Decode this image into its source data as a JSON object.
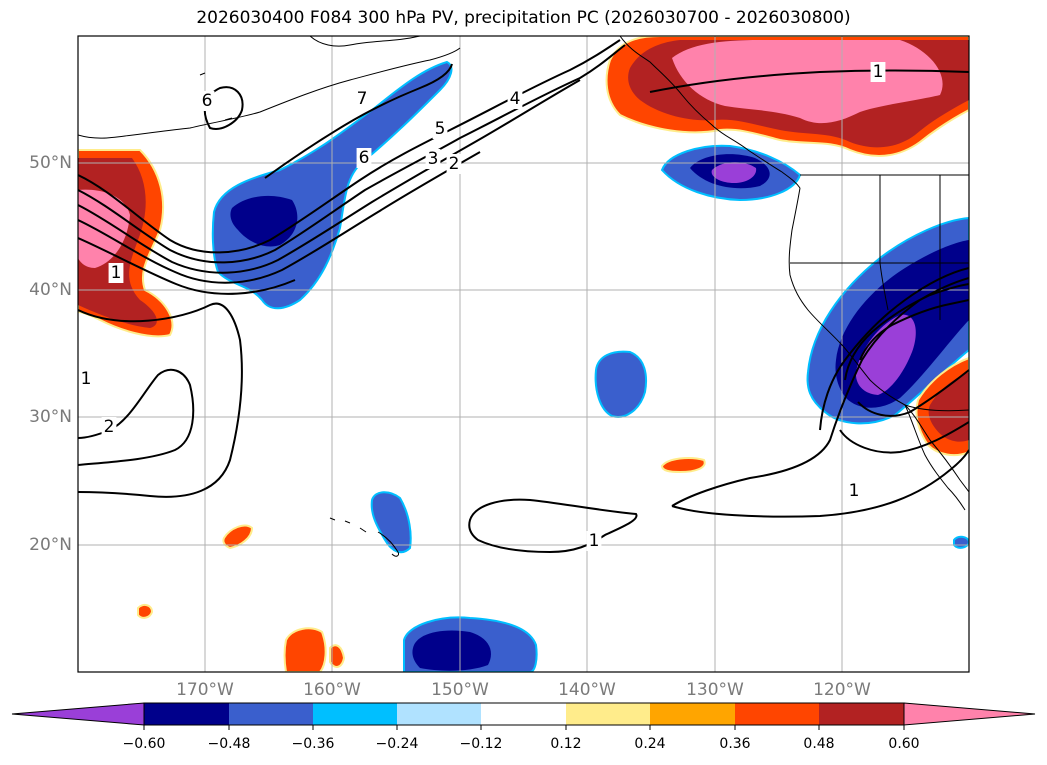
{
  "title": "2026030400 F084 300 hPa PV, precipitation PC (2026030700 - 2026030800)",
  "colors": {
    "frame": "#000000",
    "grid": "#b0b0b0",
    "coast": "#000000",
    "neg_060": "#9a3fd8",
    "neg_048": "#00008b",
    "neg_036": "#3a5fcd",
    "neg_024": "#00bfff",
    "neg_012": "#b0e2ff",
    "pos_012": "#ffec8b",
    "pos_024": "#ffa500",
    "pos_036": "#ff4500",
    "pos_048": "#b22222",
    "pos_060": "#ff82ab"
  },
  "axes": {
    "lat_labels": [
      "50°N",
      "40°N",
      "30°N",
      "20°N"
    ],
    "lon_labels": [
      "170°W",
      "160°W",
      "150°W",
      "140°W",
      "130°W",
      "120°W"
    ]
  },
  "contour_labels": [
    {
      "text": "6"
    },
    {
      "text": "7"
    },
    {
      "text": "6"
    },
    {
      "text": "5"
    },
    {
      "text": "4"
    },
    {
      "text": "3"
    },
    {
      "text": "2"
    },
    {
      "text": "1"
    },
    {
      "text": "1"
    },
    {
      "text": "2"
    },
    {
      "text": "1"
    },
    {
      "text": "1"
    },
    {
      "text": "1"
    }
  ],
  "colorbar": {
    "ticks": [
      "−0.60",
      "−0.48",
      "−0.36",
      "−0.24",
      "−0.12",
      "0.12",
      "0.24",
      "0.36",
      "0.48",
      "0.60"
    ],
    "bounds": [
      -0.6,
      -0.48,
      -0.36,
      -0.24,
      -0.12,
      0.12,
      0.24,
      0.36,
      0.48,
      0.6
    ],
    "extend": "both"
  }
}
